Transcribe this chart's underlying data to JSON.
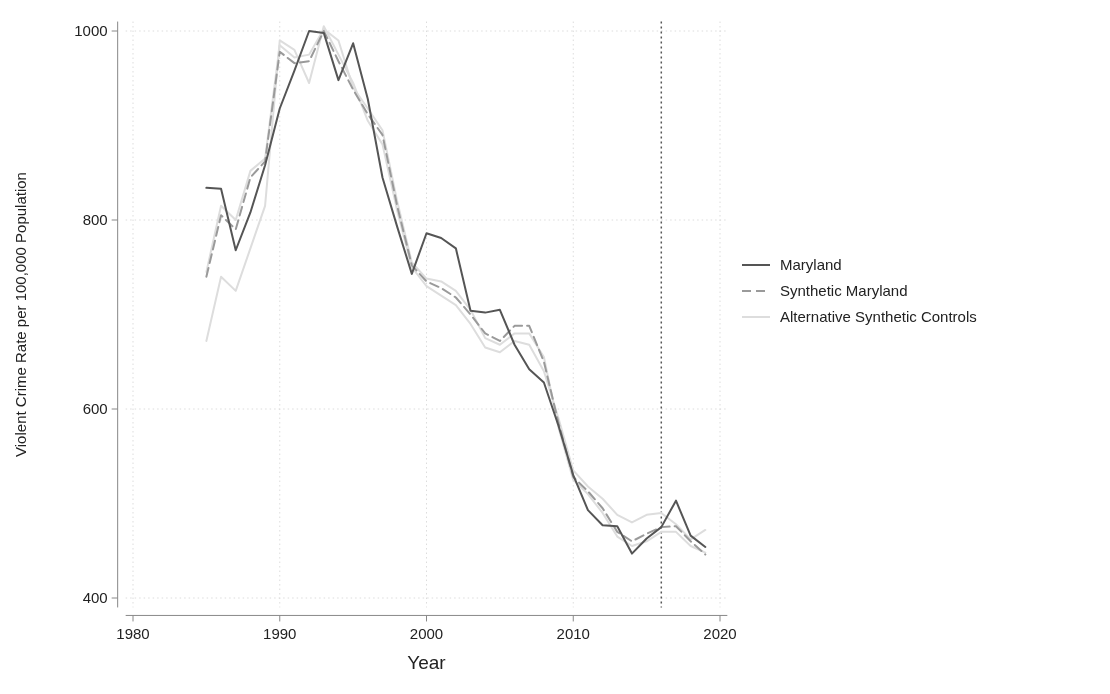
{
  "chart_data": {
    "type": "line",
    "xlabel": "Year",
    "ylabel": "Violent Crime Rate per 100,000 Population",
    "x": [
      1985,
      1986,
      1987,
      1988,
      1989,
      1990,
      1991,
      1992,
      1993,
      1994,
      1995,
      1996,
      1997,
      1998,
      1999,
      2000,
      2001,
      2002,
      2003,
      2004,
      2005,
      2006,
      2007,
      2008,
      2009,
      2010,
      2011,
      2012,
      2013,
      2014,
      2015,
      2016,
      2017,
      2018,
      2019
    ],
    "series": [
      {
        "name": "Maryland",
        "color": "#555555",
        "line_style": "solid",
        "values": [
          834,
          833,
          768,
          808,
          858,
          918,
          958,
          1000,
          998,
          948,
          987,
          928,
          845,
          793,
          743,
          786,
          781,
          770,
          704,
          702,
          705,
          668,
          642,
          628,
          582,
          530,
          493,
          477,
          476,
          447,
          463,
          475,
          503,
          466,
          454
        ]
      },
      {
        "name": "Synthetic Maryland",
        "color": "#9a9a9a",
        "line_style": "dashed",
        "values": [
          740,
          805,
          790,
          845,
          862,
          978,
          966,
          968,
          1000,
          968,
          938,
          912,
          890,
          815,
          752,
          735,
          728,
          718,
          700,
          680,
          672,
          688,
          688,
          650,
          585,
          528,
          513,
          495,
          470,
          460,
          468,
          475,
          476,
          460,
          446
        ]
      },
      {
        "name": "Alternative Synthetic Controls",
        "color": "#dddddd",
        "line_style": "solid",
        "values": [
          672,
          740,
          725,
          770,
          815,
          990,
          980,
          945,
          1005,
          975,
          945,
          905,
          880,
          810,
          750,
          730,
          720,
          710,
          690,
          665,
          660,
          672,
          668,
          640,
          590,
          535,
          518,
          505,
          488,
          480,
          488,
          490,
          478,
          462,
          472
        ]
      },
      {
        "color": "#dddddd",
        "line_style": "solid",
        "values": [
          745,
          815,
          800,
          852,
          865,
          985,
          972,
          975,
          1002,
          990,
          940,
          918,
          895,
          820,
          755,
          738,
          735,
          725,
          705,
          675,
          668,
          680,
          680,
          655,
          580,
          525,
          510,
          490,
          465,
          455,
          460,
          470,
          470,
          455,
          448
        ]
      }
    ],
    "xlim": [
      1979.5,
      2020.5
    ],
    "xticks": [
      1980,
      1990,
      2000,
      2010,
      2020
    ],
    "ylim": [
      390,
      1010
    ],
    "yticks": [
      400,
      600,
      800,
      1000
    ],
    "ref_lines": [
      {
        "axis": "x",
        "value": 2016,
        "color": "#555555",
        "line_style": "dotted"
      }
    ],
    "grid": true,
    "legend": "right"
  }
}
